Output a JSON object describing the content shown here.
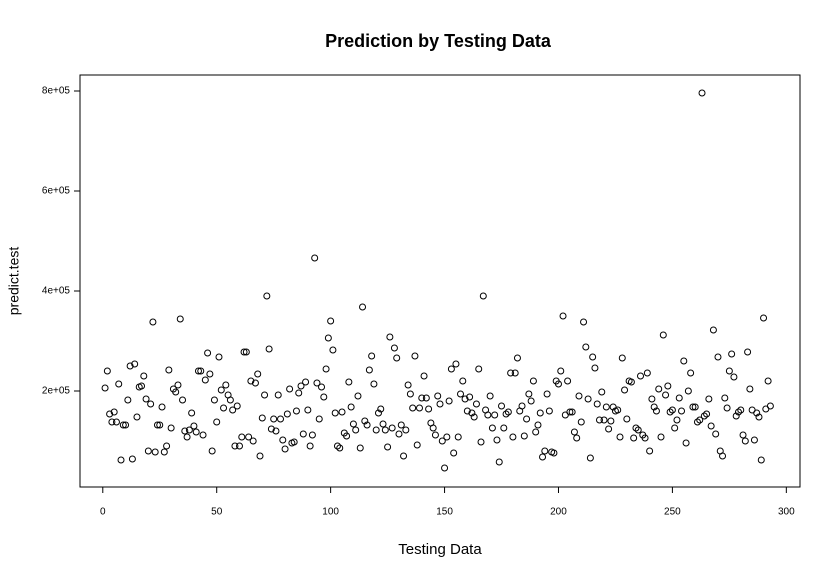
{
  "chart_data": {
    "type": "scatter",
    "title": "Prediction by Testing Data",
    "xlabel": "Testing Data",
    "ylabel": "predict.test",
    "color": "#000000",
    "xlim": [
      -10,
      306
    ],
    "ylim": [
      8000,
      832000
    ],
    "xticks": [
      0,
      50,
      100,
      150,
      200,
      250,
      300
    ],
    "yticks": [
      {
        "value": 200000,
        "label": "2e+05"
      },
      {
        "value": 400000,
        "label": "4e+05"
      },
      {
        "value": 600000,
        "label": "6e+05"
      },
      {
        "value": 800000,
        "label": "8e+05"
      }
    ],
    "x": [
      1,
      2,
      3,
      4,
      5,
      6,
      7,
      8,
      9,
      10,
      11,
      12,
      13,
      14,
      15,
      16,
      17,
      18,
      19,
      20,
      21,
      22,
      23,
      24,
      25,
      26,
      27,
      28,
      29,
      30,
      31,
      32,
      33,
      34,
      35,
      36,
      37,
      38,
      39,
      40,
      41,
      42,
      43,
      44,
      45,
      46,
      47,
      48,
      49,
      50,
      51,
      52,
      53,
      54,
      55,
      56,
      57,
      58,
      59,
      60,
      61,
      62,
      63,
      64,
      65,
      66,
      67,
      68,
      69,
      70,
      71,
      72,
      73,
      74,
      75,
      76,
      77,
      78,
      79,
      80,
      81,
      82,
      83,
      84,
      85,
      86,
      87,
      88,
      89,
      90,
      91,
      92,
      93,
      94,
      95,
      96,
      97,
      98,
      99,
      100,
      101,
      102,
      103,
      104,
      105,
      106,
      107,
      108,
      109,
      110,
      111,
      112,
      113,
      114,
      115,
      116,
      117,
      118,
      119,
      120,
      121,
      122,
      123,
      124,
      125,
      126,
      127,
      128,
      129,
      130,
      131,
      132,
      133,
      134,
      135,
      136,
      137,
      138,
      139,
      140,
      141,
      142,
      143,
      144,
      145,
      146,
      147,
      148,
      149,
      150,
      151,
      152,
      153,
      154,
      155,
      156,
      157,
      158,
      159,
      160,
      161,
      162,
      163,
      164,
      165,
      166,
      167,
      168,
      169,
      170,
      171,
      172,
      173,
      174,
      175,
      176,
      177,
      178,
      179,
      180,
      181,
      182,
      183,
      184,
      185,
      186,
      187,
      188,
      189,
      190,
      191,
      192,
      193,
      194,
      195,
      196,
      197,
      198,
      199,
      200,
      201,
      202,
      203,
      204,
      205,
      206,
      207,
      208,
      209,
      210,
      211,
      212,
      213,
      214,
      215,
      216,
      217,
      218,
      219,
      220,
      221,
      222,
      223,
      224,
      225,
      226,
      227,
      228,
      229,
      230,
      231,
      232,
      233,
      234,
      235,
      236,
      237,
      238,
      239,
      240,
      241,
      242,
      243,
      244,
      245,
      246,
      247,
      248,
      249,
      250,
      251,
      252,
      253,
      254,
      255,
      256,
      257,
      258,
      259,
      260,
      261,
      262,
      263,
      264,
      265,
      266,
      267,
      268,
      269,
      270,
      271,
      272,
      273,
      274,
      275,
      276,
      277,
      278,
      279,
      280,
      281,
      282,
      283,
      284,
      285,
      286,
      287,
      288,
      289,
      290,
      291,
      292,
      293
    ],
    "values": [
      206000,
      240000,
      154000,
      138000,
      158000,
      138000,
      214000,
      62000,
      132000,
      132000,
      182000,
      250000,
      64000,
      254000,
      148000,
      208000,
      210000,
      230000,
      184000,
      80000,
      174000,
      338000,
      78000,
      132000,
      132000,
      168000,
      78000,
      90000,
      242000,
      126000,
      204000,
      198000,
      212000,
      344000,
      182000,
      120000,
      108000,
      122000,
      156000,
      130000,
      118000,
      240000,
      240000,
      112000,
      222000,
      276000,
      234000,
      80000,
      182000,
      138000,
      268000,
      202000,
      166000,
      212000,
      192000,
      182000,
      162000,
      90000,
      170000,
      90000,
      108000,
      278000,
      278000,
      108000,
      220000,
      100000,
      216000,
      234000,
      70000,
      146000,
      192000,
      390000,
      284000,
      124000,
      144000,
      120000,
      192000,
      144000,
      102000,
      84000,
      154000,
      204000,
      96000,
      98000,
      160000,
      196000,
      210000,
      114000,
      218000,
      162000,
      90000,
      112000,
      466000,
      216000,
      144000,
      208000,
      188000,
      244000,
      306000,
      340000,
      282000,
      156000,
      90000,
      86000,
      158000,
      116000,
      110000,
      218000,
      168000,
      134000,
      122000,
      190000,
      86000,
      368000,
      140000,
      132000,
      242000,
      270000,
      214000,
      122000,
      156000,
      164000,
      134000,
      122000,
      88000,
      308000,
      126000,
      286000,
      266000,
      114000,
      132000,
      70000,
      122000,
      212000,
      194000,
      166000,
      270000,
      92000,
      166000,
      186000,
      230000,
      186000,
      164000,
      136000,
      126000,
      112000,
      190000,
      174000,
      100000,
      46000,
      108000,
      180000,
      244000,
      76000,
      254000,
      108000,
      194000,
      220000,
      184000,
      160000,
      188000,
      156000,
      148000,
      174000,
      244000,
      98000,
      390000,
      162000,
      152000,
      190000,
      126000,
      152000,
      102000,
      58000,
      170000,
      126000,
      154000,
      158000,
      236000,
      108000,
      236000,
      266000,
      160000,
      170000,
      110000,
      144000,
      194000,
      180000,
      220000,
      118000,
      132000,
      156000,
      68000,
      80000,
      194000,
      160000,
      78000,
      76000,
      220000,
      214000,
      240000,
      350000,
      152000,
      220000,
      158000,
      158000,
      118000,
      106000,
      190000,
      138000,
      338000,
      288000,
      184000,
      66000,
      268000,
      246000,
      174000,
      142000,
      198000,
      142000,
      168000,
      124000,
      140000,
      168000,
      160000,
      162000,
      108000,
      266000,
      202000,
      144000,
      220000,
      218000,
      106000,
      126000,
      122000,
      230000,
      112000,
      106000,
      236000,
      80000,
      184000,
      168000,
      160000,
      204000,
      108000,
      312000,
      192000,
      210000,
      158000,
      162000,
      126000,
      142000,
      186000,
      160000,
      260000,
      96000,
      200000,
      236000,
      168000,
      168000,
      138000,
      142000,
      796000,
      150000,
      154000,
      184000,
      130000,
      322000,
      114000,
      268000,
      80000,
      70000,
      186000,
      166000,
      240000,
      274000,
      228000,
      150000,
      158000,
      162000,
      112000,
      100000,
      278000,
      204000,
      162000,
      102000,
      156000,
      148000,
      62000,
      346000,
      164000,
      220000,
      170000
    ]
  }
}
